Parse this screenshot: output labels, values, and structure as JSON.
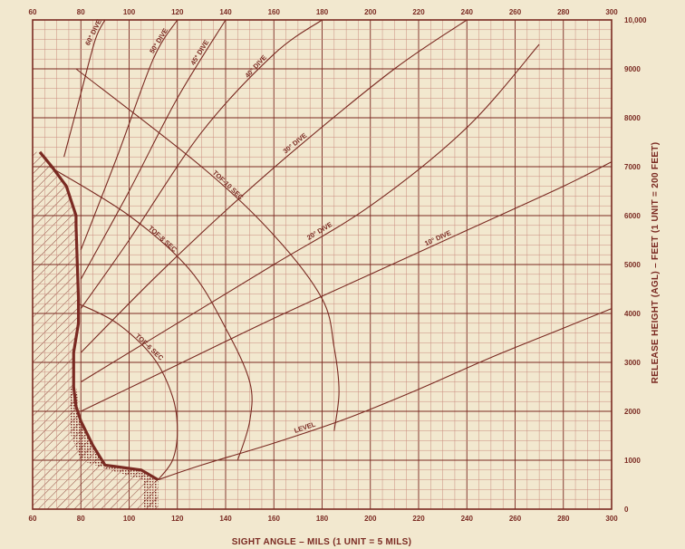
{
  "colors": {
    "ink": "#7a2a22",
    "paper": "#f2e8cf",
    "grid": "#c98c7f"
  },
  "chart_data": {
    "type": "line",
    "title": "",
    "xlabel": "SIGHT ANGLE – MILS (1 UNIT = 5 MILS)",
    "ylabel": "RELEASE HEIGHT (AGL) – FEET (1 UNIT = 200 FEET)",
    "xlim": [
      60,
      300
    ],
    "ylim": [
      0,
      10000
    ],
    "grid": true,
    "x_ticks": [
      "60",
      "80",
      "100",
      "120",
      "140",
      "160",
      "180",
      "200",
      "220",
      "240",
      "260",
      "280",
      "300"
    ],
    "y_ticks": [
      "0",
      "1000",
      "2000",
      "3000",
      "4000",
      "5000",
      "6000",
      "7000",
      "8000",
      "9000",
      "10,000"
    ],
    "series": [
      {
        "name": "LEVEL",
        "x": [
          112,
          130,
          160,
          190,
          220,
          250,
          280,
          300
        ],
        "y": [
          600,
          900,
          1350,
          1850,
          2450,
          3100,
          3700,
          4100
        ]
      },
      {
        "name": "10° DIVE",
        "x": [
          80,
          120,
          160,
          200,
          240,
          280,
          300
        ],
        "y": [
          2000,
          2950,
          3900,
          4800,
          5700,
          6600,
          7100
        ]
      },
      {
        "name": "20° DIVE",
        "x": [
          80,
          120,
          160,
          200,
          240,
          270
        ],
        "y": [
          2600,
          3800,
          5000,
          6200,
          7800,
          9500
        ]
      },
      {
        "name": "30° DIVE",
        "x": [
          80,
          110,
          140,
          170,
          210,
          240
        ],
        "y": [
          3200,
          4700,
          6100,
          7400,
          9000,
          10000
        ]
      },
      {
        "name": "40° DIVE",
        "x": [
          80,
          100,
          130,
          160,
          180
        ],
        "y": [
          4100,
          5500,
          7700,
          9300,
          10000
        ]
      },
      {
        "name": "45° DIVE",
        "x": [
          80,
          100,
          120,
          140
        ],
        "y": [
          4700,
          6500,
          8400,
          10000
        ]
      },
      {
        "name": "50° DIVE",
        "x": [
          80,
          95,
          110,
          120
        ],
        "y": [
          5300,
          7200,
          9200,
          10000
        ]
      },
      {
        "name": "60° DIVE",
        "x": [
          73,
          80,
          86,
          90
        ],
        "y": [
          7200,
          8500,
          9600,
          10000
        ]
      },
      {
        "name": "TOF-6 SEC",
        "x": [
          79,
          95,
          110,
          118,
          120,
          118,
          112
        ],
        "y": [
          4200,
          3800,
          3100,
          2300,
          1600,
          1000,
          600
        ]
      },
      {
        "name": "TOF-8 SEC",
        "x": [
          67,
          100,
          125,
          140,
          150,
          150,
          145
        ],
        "y": [
          7000,
          6000,
          4900,
          3700,
          2600,
          1800,
          1000
        ]
      },
      {
        "name": "TOF-10 SEC",
        "x": [
          78,
          130,
          160,
          180,
          185,
          187,
          185
        ],
        "y": [
          9000,
          7000,
          5600,
          4300,
          3300,
          2400,
          1600
        ]
      }
    ],
    "boundary": {
      "x": [
        63,
        68,
        74,
        78,
        78,
        79,
        79,
        77,
        77,
        78,
        80,
        85,
        90,
        105,
        112
      ],
      "y": [
        7300,
        7000,
        6600,
        6000,
        5800,
        4300,
        3800,
        3200,
        2500,
        2100,
        1800,
        1300,
        900,
        800,
        600
      ]
    }
  }
}
